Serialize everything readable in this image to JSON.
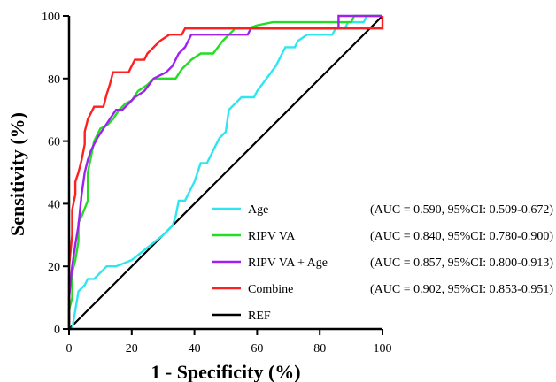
{
  "chart_data": {
    "type": "line",
    "xlabel": "1 - Specificity (%)",
    "ylabel": "Sensitivity (%)",
    "xlim": [
      0,
      100
    ],
    "ylim": [
      0,
      100
    ],
    "xticks": [
      0,
      20,
      40,
      60,
      80,
      100
    ],
    "yticks": [
      0,
      20,
      40,
      60,
      80,
      100
    ],
    "legend_position": "bottom-right",
    "series": [
      {
        "name": "Age",
        "auc_label": "(AUC = 0.590, 95%CI: 0.509-0.672)",
        "color": "#2ee6f0",
        "points": [
          [
            0,
            0
          ],
          [
            1,
            0
          ],
          [
            2,
            6
          ],
          [
            3,
            12
          ],
          [
            5,
            14
          ],
          [
            6,
            16
          ],
          [
            8,
            16
          ],
          [
            10,
            18
          ],
          [
            12,
            20
          ],
          [
            15,
            20
          ],
          [
            20,
            22
          ],
          [
            25,
            26
          ],
          [
            30,
            30
          ],
          [
            33,
            33
          ],
          [
            34,
            36
          ],
          [
            35,
            41
          ],
          [
            37,
            41
          ],
          [
            38,
            43
          ],
          [
            40,
            47
          ],
          [
            42,
            53
          ],
          [
            44,
            53
          ],
          [
            46,
            57
          ],
          [
            48,
            61
          ],
          [
            50,
            63
          ],
          [
            51,
            70
          ],
          [
            53,
            72
          ],
          [
            55,
            74
          ],
          [
            59,
            74
          ],
          [
            60,
            76
          ],
          [
            63,
            80
          ],
          [
            66,
            84
          ],
          [
            68,
            88
          ],
          [
            69,
            90
          ],
          [
            72,
            90
          ],
          [
            73,
            92
          ],
          [
            76,
            94
          ],
          [
            84,
            94
          ],
          [
            85,
            96
          ],
          [
            88,
            96
          ],
          [
            89,
            98
          ],
          [
            94,
            98
          ],
          [
            95,
            100
          ],
          [
            100,
            100
          ]
        ]
      },
      {
        "name": "RIPV VA",
        "auc_label": "(AUC = 0.840, 95%CI: 0.780-0.900)",
        "color": "#22dd22",
        "points": [
          [
            0,
            0
          ],
          [
            0,
            6
          ],
          [
            1,
            10
          ],
          [
            1,
            18
          ],
          [
            2,
            22
          ],
          [
            3,
            28
          ],
          [
            3,
            34
          ],
          [
            4,
            36
          ],
          [
            6,
            41
          ],
          [
            6,
            50
          ],
          [
            7,
            55
          ],
          [
            8,
            60
          ],
          [
            10,
            64
          ],
          [
            12,
            65
          ],
          [
            14,
            67
          ],
          [
            16,
            70
          ],
          [
            18,
            72
          ],
          [
            20,
            73
          ],
          [
            22,
            76
          ],
          [
            25,
            78
          ],
          [
            27,
            80
          ],
          [
            34,
            80
          ],
          [
            36,
            83
          ],
          [
            39,
            86
          ],
          [
            42,
            88
          ],
          [
            46,
            88
          ],
          [
            49,
            92
          ],
          [
            53,
            96
          ],
          [
            57,
            96
          ],
          [
            60,
            97
          ],
          [
            65,
            98
          ],
          [
            90,
            98
          ],
          [
            91,
            100
          ],
          [
            100,
            100
          ]
        ]
      },
      {
        "name": "RIPV VA + Age",
        "auc_label": "(AUC = 0.857, 95%CI: 0.800-0.913)",
        "color": "#a020f0",
        "points": [
          [
            0,
            0
          ],
          [
            0,
            10
          ],
          [
            1,
            20
          ],
          [
            2,
            27
          ],
          [
            3,
            33
          ],
          [
            4,
            43
          ],
          [
            5,
            50
          ],
          [
            6,
            54
          ],
          [
            7,
            57
          ],
          [
            8,
            59
          ],
          [
            9,
            61
          ],
          [
            11,
            64
          ],
          [
            13,
            67
          ],
          [
            15,
            70
          ],
          [
            17,
            70
          ],
          [
            19,
            72
          ],
          [
            21,
            74
          ],
          [
            24,
            76
          ],
          [
            27,
            80
          ],
          [
            31,
            82
          ],
          [
            33,
            84
          ],
          [
            35,
            88
          ],
          [
            37,
            90
          ],
          [
            39,
            94
          ],
          [
            57,
            94
          ],
          [
            58,
            96
          ],
          [
            86,
            96
          ],
          [
            86,
            100
          ],
          [
            100,
            100
          ]
        ]
      },
      {
        "name": "Combine",
        "auc_label": "(AUC = 0.902, 95%CI: 0.853-0.951)",
        "color": "#ff1f1f",
        "points": [
          [
            0,
            0
          ],
          [
            0,
            20
          ],
          [
            1,
            30
          ],
          [
            1,
            38
          ],
          [
            2,
            43
          ],
          [
            2,
            47
          ],
          [
            3,
            50
          ],
          [
            4,
            54
          ],
          [
            5,
            59
          ],
          [
            5,
            63
          ],
          [
            6,
            67
          ],
          [
            7,
            69
          ],
          [
            8,
            71
          ],
          [
            11,
            71
          ],
          [
            12,
            75
          ],
          [
            13,
            78
          ],
          [
            14,
            82
          ],
          [
            19,
            82
          ],
          [
            21,
            86
          ],
          [
            24,
            86
          ],
          [
            25,
            88
          ],
          [
            27,
            90
          ],
          [
            29,
            92
          ],
          [
            32,
            94
          ],
          [
            36,
            94
          ],
          [
            37,
            96
          ],
          [
            100,
            96
          ],
          [
            100,
            100
          ]
        ]
      },
      {
        "name": "REF",
        "auc_label": "",
        "color": "#000000",
        "points": [
          [
            0,
            0
          ],
          [
            100,
            100
          ]
        ]
      }
    ]
  }
}
